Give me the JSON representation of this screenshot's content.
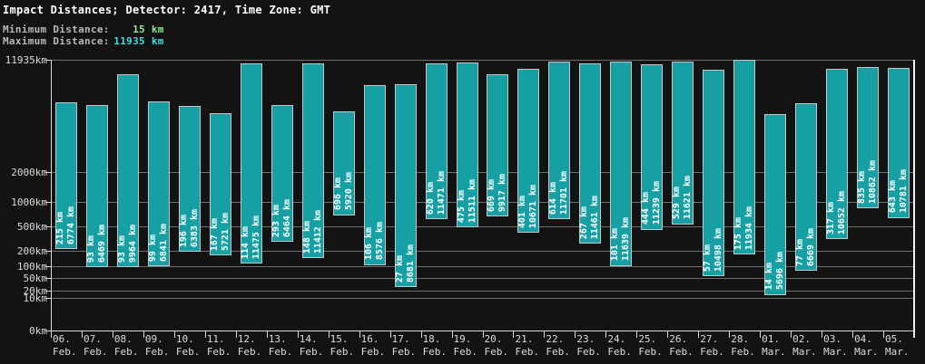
{
  "header": {
    "title": "Impact Distances; Detector: 2417, Time Zone: GMT",
    "min_label": "Minimum Distance:",
    "min_value": "15 km",
    "max_label": "Maximum Distance:",
    "max_value": "11935 km"
  },
  "colors": {
    "background": "#131313",
    "bar_fill": "#16a0a4",
    "bar_border": "#c6c6c6",
    "bar_text": "#ffffff",
    "gridline": "#6e6e6e",
    "axis": "#dcdcdc",
    "right_border": "#f2f2f2",
    "title_text": "#ffffff",
    "header_label_text": "#b9b9b9",
    "min_value_text": "#8ee88e",
    "max_value_text": "#40dede"
  },
  "chart_data": {
    "type": "bar",
    "title": "Impact Distances; Detector: 2417, Time Zone: GMT",
    "unit": "km",
    "grid": true,
    "legend": "none",
    "y_axis": {
      "max": 11935,
      "min": 0,
      "scale": "power",
      "scale_exponent": 0.3,
      "tick_values": [
        11935,
        2000,
        1000,
        500,
        200,
        100,
        50,
        20,
        10,
        0
      ],
      "tick_labels": [
        "11935km",
        "2000km",
        "1000km",
        "500km",
        "200km",
        "100km",
        "50km",
        "20km",
        "10km",
        "0km"
      ]
    },
    "categories": [
      {
        "day": "06.",
        "month": "Feb."
      },
      {
        "day": "07.",
        "month": "Feb."
      },
      {
        "day": "08.",
        "month": "Feb."
      },
      {
        "day": "09.",
        "month": "Feb."
      },
      {
        "day": "10.",
        "month": "Feb."
      },
      {
        "day": "11.",
        "month": "Feb."
      },
      {
        "day": "12.",
        "month": "Feb."
      },
      {
        "day": "13.",
        "month": "Feb."
      },
      {
        "day": "14.",
        "month": "Feb."
      },
      {
        "day": "15.",
        "month": "Feb."
      },
      {
        "day": "16.",
        "month": "Feb."
      },
      {
        "day": "17.",
        "month": "Feb."
      },
      {
        "day": "18.",
        "month": "Feb."
      },
      {
        "day": "19.",
        "month": "Feb."
      },
      {
        "day": "20.",
        "month": "Feb."
      },
      {
        "day": "21.",
        "month": "Feb."
      },
      {
        "day": "22.",
        "month": "Feb."
      },
      {
        "day": "23.",
        "month": "Feb."
      },
      {
        "day": "24.",
        "month": "Feb."
      },
      {
        "day": "25.",
        "month": "Feb."
      },
      {
        "day": "26.",
        "month": "Feb."
      },
      {
        "day": "27.",
        "month": "Feb."
      },
      {
        "day": "28.",
        "month": "Feb."
      },
      {
        "day": "01.",
        "month": "Mar."
      },
      {
        "day": "02.",
        "month": "Mar."
      },
      {
        "day": "03.",
        "month": "Mar."
      },
      {
        "day": "04.",
        "month": "Mar."
      },
      {
        "day": "05.",
        "month": "Mar."
      }
    ],
    "series": [
      {
        "name": "Minimum Distance",
        "values": [
          215,
          93,
          93,
          99,
          196,
          167,
          114,
          293,
          148,
          696,
          106,
          27,
          620,
          475,
          669,
          401,
          614,
          267,
          101,
          444,
          529,
          57,
          175,
          14,
          77,
          317,
          835,
          643
        ]
      },
      {
        "name": "Maximum Distance",
        "values": [
          6774,
          6469,
          9964,
          6841,
          6383,
          5721,
          11475,
          6464,
          11412,
          5920,
          8576,
          8681,
          11471,
          11511,
          9917,
          10671,
          11701,
          11461,
          11639,
          11239,
          11621,
          10498,
          11934,
          5696,
          6669,
          10652,
          10862,
          10781
        ]
      }
    ]
  }
}
